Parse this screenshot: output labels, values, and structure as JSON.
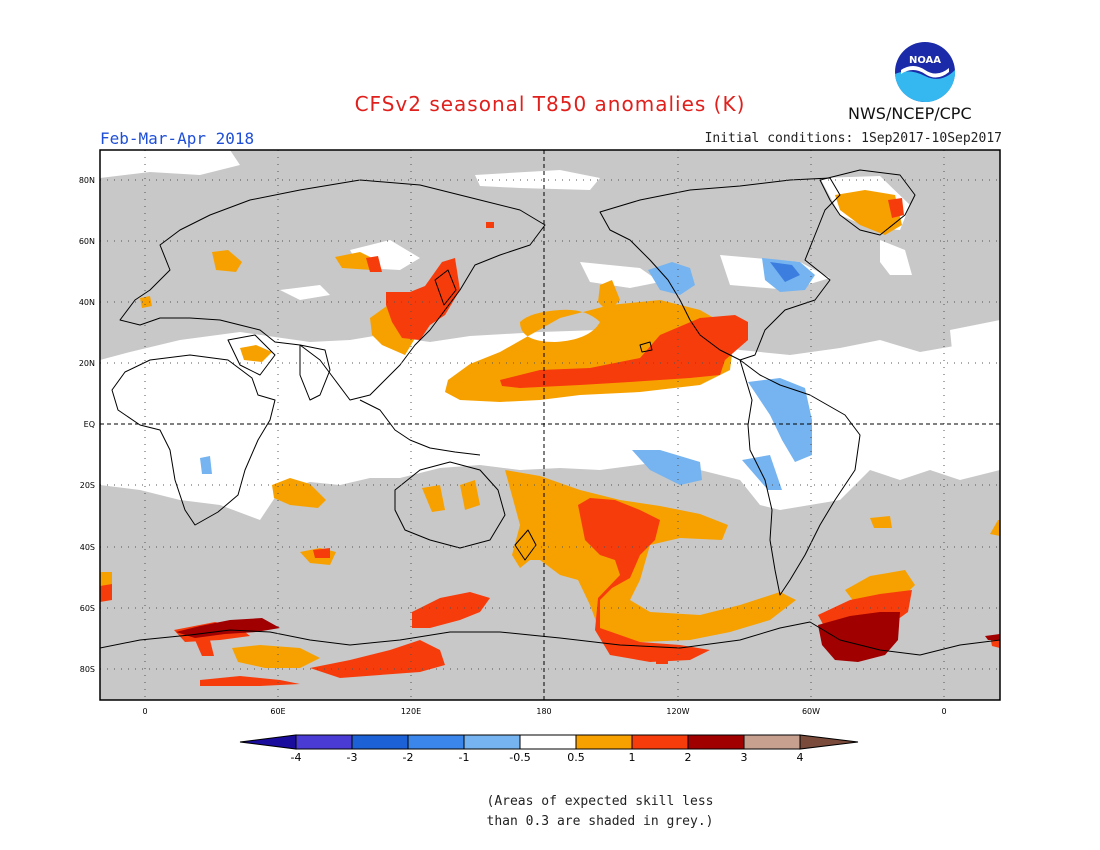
{
  "header": {
    "title": "CFSv2 seasonal T850 anomalies (K)",
    "period": "Feb-Mar-Apr 2018",
    "initial_conditions": "Initial conditions: 1Sep2017-10Sep2017",
    "agency": "NWS/NCEP/CPC",
    "logo_text": "NOAA"
  },
  "map": {
    "lat_labels": [
      "80N",
      "60N",
      "40N",
      "20N",
      "EQ",
      "20S",
      "40S",
      "60S",
      "80S"
    ],
    "lon_labels": [
      "0",
      "60E",
      "120E",
      "180",
      "120W",
      "60W",
      "0"
    ],
    "colors": {
      "grey_skill": "#c8c8c8",
      "blue_light": "#75b4f0",
      "blue_mid": "#3c7ee0",
      "orange": "#f7a100",
      "red_orange": "#f73c0c",
      "dark_red": "#a00000"
    }
  },
  "colorbar": {
    "labels": [
      "-4",
      "-3",
      "-2",
      "-1",
      "-0.5",
      "0.5",
      "1",
      "2",
      "3",
      "4"
    ],
    "bins": [
      {
        "color": "#1a0c9c"
      },
      {
        "color": "#4a3bd4"
      },
      {
        "color": "#1c62d6"
      },
      {
        "color": "#3a86ea"
      },
      {
        "color": "#75b4f0"
      },
      {
        "color": "#ffffff"
      },
      {
        "color": "#f7a100"
      },
      {
        "color": "#f73c0c"
      },
      {
        "color": "#a00000"
      },
      {
        "color": "#c8a090"
      },
      {
        "color": "#7a4a3a"
      }
    ]
  },
  "note": {
    "line1": "(Areas of expected skill less",
    "line2": "than 0.3 are shaded in grey.)"
  }
}
